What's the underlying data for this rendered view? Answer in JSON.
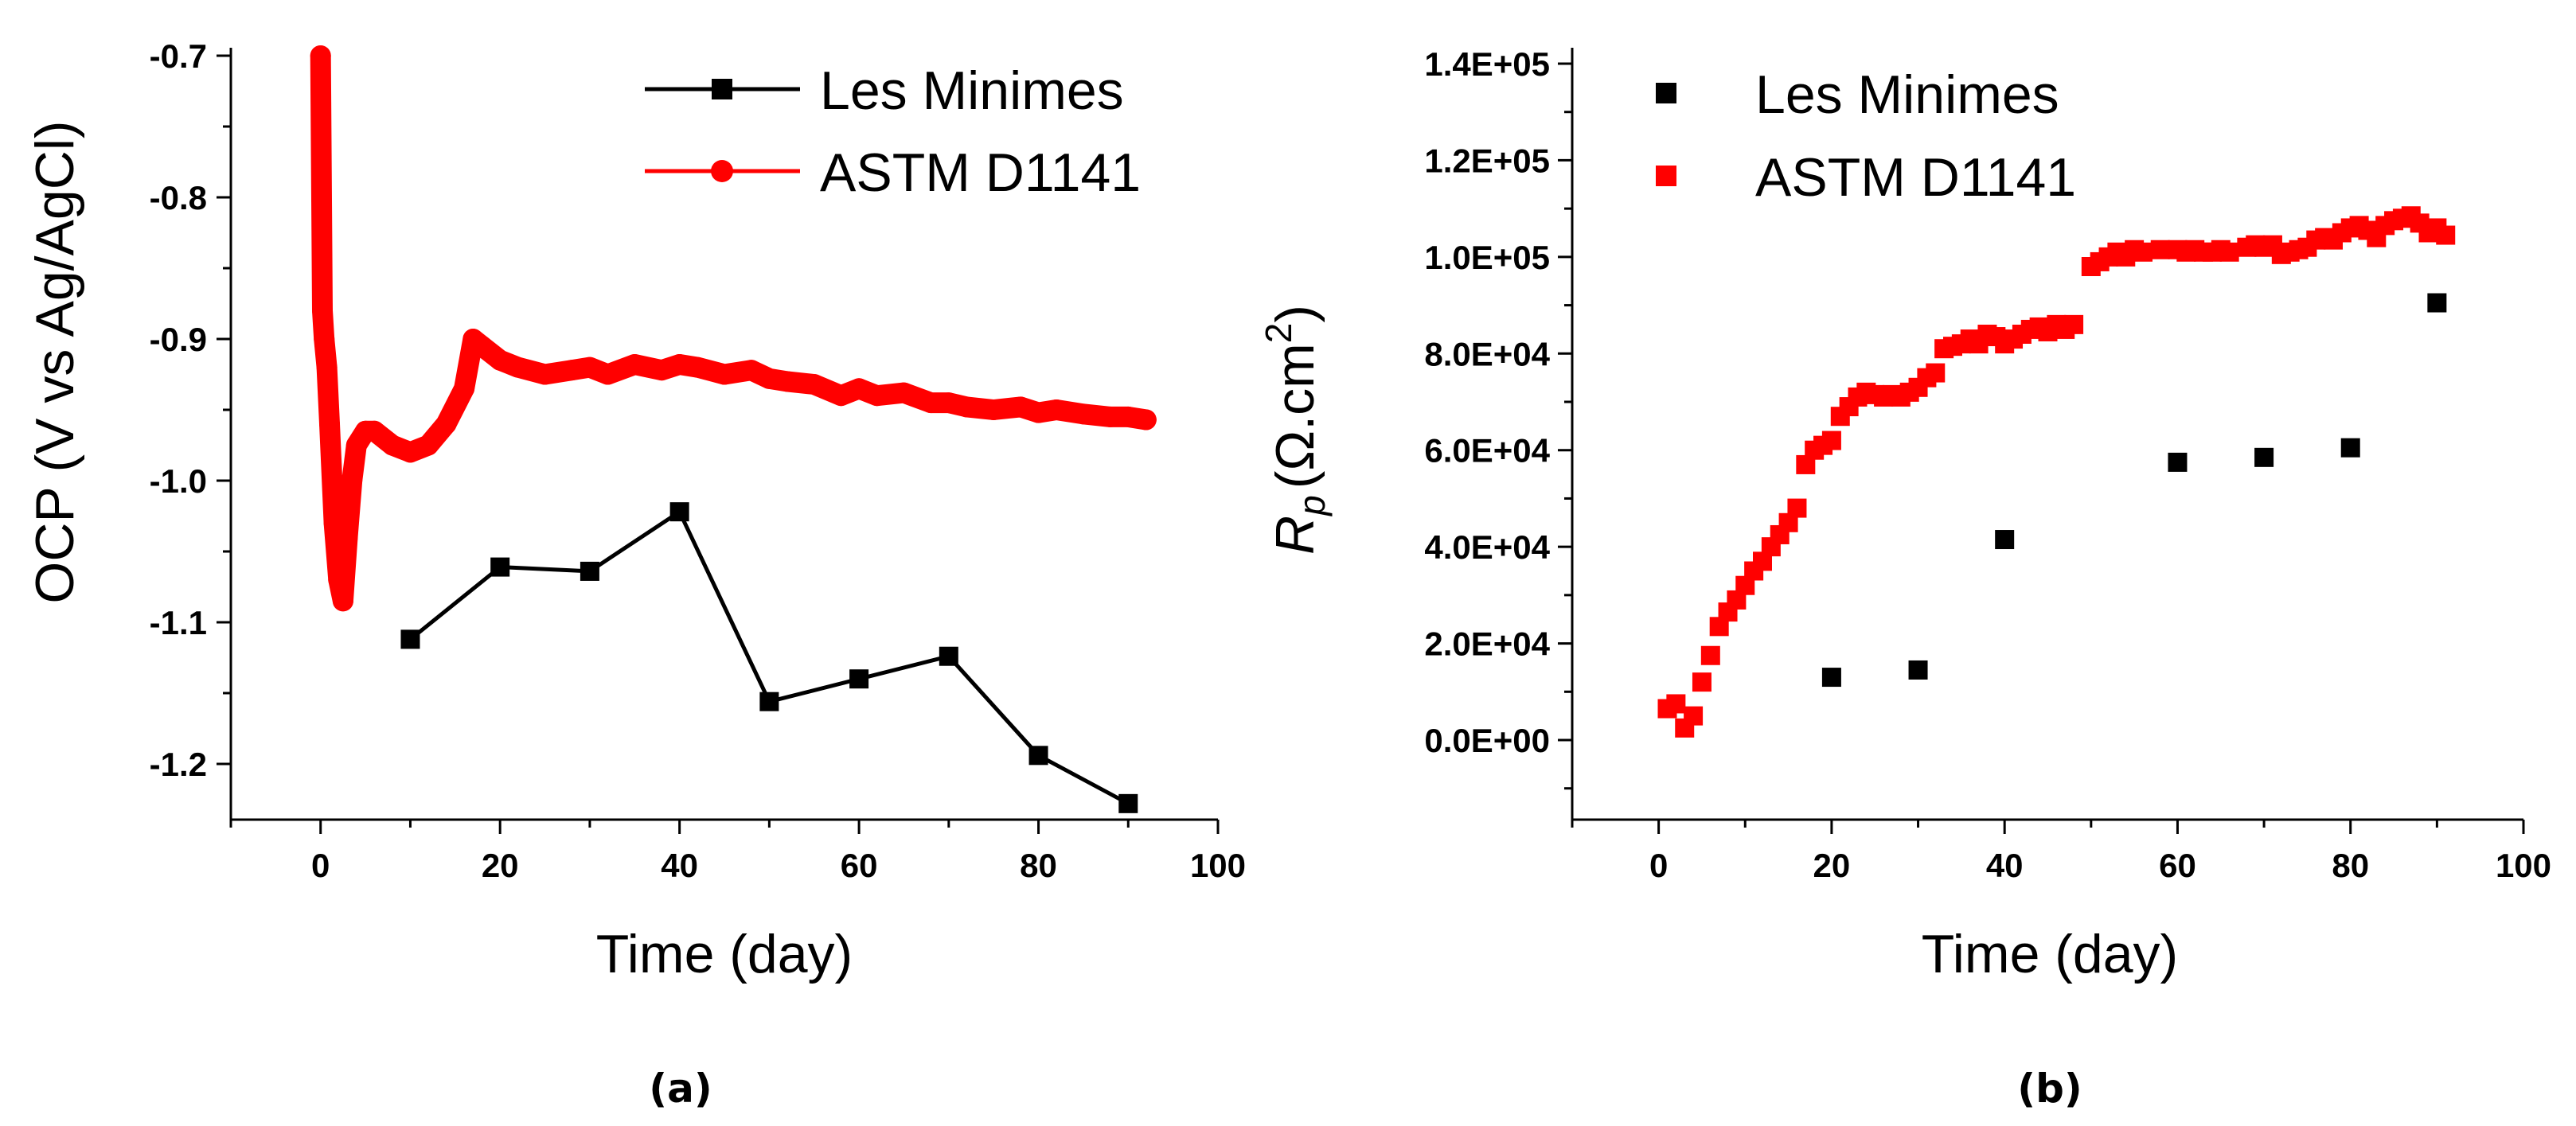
{
  "colors": {
    "black": "#000000",
    "red": "#ff0000"
  },
  "chart_data": [
    {
      "id": "a",
      "type": "line",
      "panel_label": "(a)",
      "xlabel": "Time (day)",
      "ylabel": "OCP (V vs Ag/AgCl)",
      "xlim": [
        -10,
        100
      ],
      "ylim": [
        -1.25,
        -0.7
      ],
      "xticks": [
        "0",
        "20",
        "40",
        "60",
        "80",
        "100"
      ],
      "yticks": [
        "-0.7",
        "-0.8",
        "-0.9",
        "-1.0",
        "-1.1",
        "-1.2"
      ],
      "legend": [
        "Les Minimes",
        "ASTM D1141"
      ],
      "series": [
        {
          "name": "Les Minimes",
          "color": "#000000",
          "marker": "square",
          "x": [
            10,
            20,
            30,
            40,
            50,
            60,
            70,
            80,
            90
          ],
          "y": [
            -1.112,
            -1.061,
            -1.064,
            -1.022,
            -1.156,
            -1.14,
            -1.124,
            -1.194,
            -1.228
          ]
        },
        {
          "name": "ASTM D1141",
          "color": "#ff0000",
          "marker": "circle",
          "x": [
            0,
            0.2,
            0.4,
            0.7,
            1,
            1.5,
            2,
            2.5,
            3,
            3.5,
            4,
            5,
            6,
            8,
            10,
            12,
            14,
            16,
            17,
            18,
            20,
            22,
            25,
            28,
            30,
            32,
            35,
            38,
            40,
            42,
            45,
            48,
            50,
            52,
            55,
            58,
            60,
            62,
            65,
            68,
            70,
            72,
            75,
            78,
            80,
            82,
            85,
            88,
            90,
            92
          ],
          "y": [
            -0.7,
            -0.88,
            -0.9,
            -0.92,
            -0.96,
            -1.03,
            -1.07,
            -1.085,
            -1.04,
            -1.0,
            -0.975,
            -0.965,
            -0.965,
            -0.975,
            -0.98,
            -0.975,
            -0.96,
            -0.935,
            -0.9,
            -0.905,
            -0.915,
            -0.92,
            -0.925,
            -0.922,
            -0.92,
            -0.925,
            -0.918,
            -0.922,
            -0.918,
            -0.92,
            -0.925,
            -0.922,
            -0.928,
            -0.93,
            -0.932,
            -0.94,
            -0.935,
            -0.94,
            -0.938,
            -0.945,
            -0.945,
            -0.948,
            -0.95,
            -0.948,
            -0.952,
            -0.95,
            -0.953,
            -0.955,
            -0.955,
            -0.957
          ]
        }
      ]
    },
    {
      "id": "b",
      "type": "scatter",
      "panel_label": "(b)",
      "xlabel": "Time (day)",
      "ylabel_main": "R",
      "ylabel_sub": "p",
      "ylabel_units": "(Ω.cm",
      "ylabel_sup": "2",
      "ylabel_close": ")",
      "xlim": [
        -10,
        100
      ],
      "ylim": [
        -15000,
        140000
      ],
      "xticks": [
        "0",
        "20",
        "40",
        "60",
        "80",
        "100"
      ],
      "yticks": [
        "0.0E+00",
        "2.0E+04",
        "4.0E+04",
        "6.0E+04",
        "8.0E+04",
        "1.0E+05",
        "1.2E+05",
        "1.4E+05"
      ],
      "legend": [
        "Les Minimes",
        "ASTM D1141"
      ],
      "series": [
        {
          "name": "Les Minimes",
          "color": "#000000",
          "marker": "square",
          "x": [
            20,
            30,
            40,
            60,
            70,
            80,
            90
          ],
          "y": [
            13000,
            14500,
            41500,
            57500,
            58500,
            60500,
            90500
          ]
        },
        {
          "name": "ASTM D1141",
          "color": "#ff0000",
          "marker": "square",
          "x": [
            1,
            2,
            3,
            4,
            5,
            6,
            7,
            8,
            9,
            10,
            11,
            12,
            13,
            14,
            15,
            16,
            17,
            18,
            19,
            20,
            21,
            22,
            23,
            24,
            25,
            26,
            27,
            28,
            29,
            30,
            31,
            32,
            33,
            34,
            35,
            36,
            37,
            38,
            39,
            40,
            41,
            42,
            43,
            44,
            45,
            46,
            47,
            48,
            50,
            51,
            52,
            53,
            54,
            55,
            56,
            58,
            60,
            61,
            62,
            63,
            64,
            65,
            66,
            68,
            69,
            70,
            71,
            72,
            73,
            74,
            75,
            76,
            77,
            78,
            79,
            80,
            81,
            82,
            83,
            84,
            85,
            86,
            87,
            88,
            89,
            90,
            91
          ],
          "y": [
            6500,
            7500,
            2500,
            5000,
            12000,
            17500,
            23500,
            26500,
            29000,
            32000,
            35000,
            37000,
            40000,
            42500,
            45000,
            48000,
            57000,
            60000,
            61000,
            62000,
            67000,
            69000,
            71000,
            72000,
            71500,
            71000,
            71500,
            71000,
            72000,
            73000,
            75000,
            76000,
            81000,
            81500,
            82000,
            83000,
            82000,
            84000,
            83500,
            82000,
            83000,
            84000,
            85000,
            85500,
            84500,
            86000,
            85000,
            86000,
            98000,
            99000,
            100000,
            101000,
            100000,
            101500,
            101000,
            101500,
            101500,
            101000,
            101500,
            101000,
            101000,
            101500,
            101000,
            102000,
            102500,
            102000,
            102500,
            100500,
            101000,
            101500,
            102000,
            103500,
            104000,
            103500,
            105000,
            106000,
            106500,
            105500,
            104000,
            106500,
            107500,
            108000,
            108500,
            107000,
            105000,
            106000,
            104500
          ]
        }
      ]
    }
  ]
}
